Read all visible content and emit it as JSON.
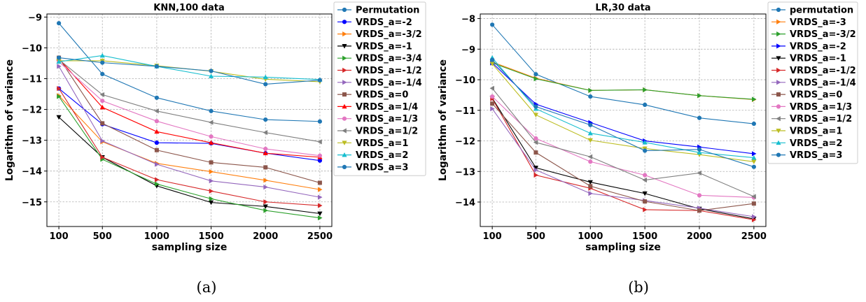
{
  "chart_data": [
    {
      "type": "line",
      "title": "KNN,100 data",
      "xlabel": "sampling size",
      "ylabel": "Logarithm of variance",
      "x": [
        100,
        500,
        1000,
        1500,
        2000,
        2500
      ],
      "xticks": [
        "100",
        "500",
        "1000",
        "1500",
        "2000",
        "2500"
      ],
      "yticks": [
        -15,
        -14,
        -13,
        -12,
        -11,
        -10,
        -9
      ],
      "ylim": [
        -15.8,
        -8.9
      ],
      "grid": true,
      "legend": "right",
      "caption": "(a)",
      "series": [
        {
          "name": "Permutation",
          "color": "#1f77b4",
          "marker": "circle",
          "values": [
            -9.2,
            -10.85,
            -11.62,
            -12.05,
            -12.33,
            -12.39
          ]
        },
        {
          "name": "VRDS_a=-2",
          "color": "#0000ff",
          "marker": "circle",
          "values": [
            -11.32,
            -12.48,
            -13.08,
            -13.1,
            -13.42,
            -13.66
          ]
        },
        {
          "name": "VRDS_a=-3/2",
          "color": "#ff7f0e",
          "marker": "tri_right",
          "values": [
            -11.55,
            -13.05,
            -13.75,
            -14.02,
            -14.3,
            -14.6
          ]
        },
        {
          "name": "VRDS_a=-1",
          "color": "#000000",
          "marker": "tri_down",
          "values": [
            -12.25,
            -13.55,
            -14.48,
            -15.02,
            -15.15,
            -15.38
          ]
        },
        {
          "name": "VRDS_a=-3/4",
          "color": "#2ca02c",
          "marker": "tri_right",
          "values": [
            -11.58,
            -13.62,
            -14.42,
            -14.9,
            -15.28,
            -15.52
          ]
        },
        {
          "name": "VRDS_a=-1/2",
          "color": "#d62728",
          "marker": "tri_right",
          "values": [
            -11.32,
            -13.55,
            -14.28,
            -14.65,
            -15.0,
            -15.12
          ]
        },
        {
          "name": "VRDS_a=-1/4",
          "color": "#9467bd",
          "marker": "tri_right",
          "values": [
            -10.6,
            -13.02,
            -13.78,
            -14.32,
            -14.52,
            -14.85
          ]
        },
        {
          "name": "VRDS_a=0",
          "color": "#8c564b",
          "marker": "square",
          "values": [
            -10.32,
            -12.45,
            -13.32,
            -13.72,
            -13.88,
            -14.38
          ]
        },
        {
          "name": "VRDS_a=1/4",
          "color": "#ff0000",
          "marker": "tri_up",
          "values": [
            -10.35,
            -11.93,
            -12.72,
            -13.08,
            -13.42,
            -13.55
          ]
        },
        {
          "name": "VRDS_a=1/3",
          "color": "#e377c2",
          "marker": "circle",
          "values": [
            -10.45,
            -11.72,
            -12.38,
            -12.88,
            -13.28,
            -13.5
          ]
        },
        {
          "name": "VRDS_a=1/2",
          "color": "#7f7f7f",
          "marker": "tri_left",
          "values": [
            -10.38,
            -11.52,
            -12.05,
            -12.42,
            -12.75,
            -13.05
          ]
        },
        {
          "name": "VRDS_a=1",
          "color": "#bcbd22",
          "marker": "tri_down",
          "values": [
            -10.42,
            -10.42,
            -10.58,
            -10.76,
            -11.02,
            -11.1
          ]
        },
        {
          "name": "VRDS_a=2",
          "color": "#17becf",
          "marker": "tri_up",
          "values": [
            -10.45,
            -10.25,
            -10.6,
            -10.92,
            -10.95,
            -11.03
          ]
        },
        {
          "name": "VRDS_a=3",
          "color": "#1f77b4",
          "marker": "circle",
          "values": [
            -10.32,
            -10.48,
            -10.6,
            -10.75,
            -11.18,
            -11.05
          ]
        }
      ]
    },
    {
      "type": "line",
      "title": "LR,30 data",
      "xlabel": "sampling size",
      "ylabel": "Logarithm of variance",
      "x": [
        100,
        500,
        1000,
        1500,
        2000,
        2500
      ],
      "xticks": [
        "100",
        "500",
        "1000",
        "1500",
        "2000",
        "2500"
      ],
      "yticks": [
        -14,
        -13,
        -12,
        -11,
        -10,
        -9,
        -8
      ],
      "ylim": [
        -14.8,
        -7.85
      ],
      "grid": true,
      "legend": "right",
      "caption": "(b)",
      "series": [
        {
          "name": "permutation",
          "color": "#1f77b4",
          "marker": "circle",
          "values": [
            -8.2,
            -9.82,
            -10.55,
            -10.82,
            -11.25,
            -11.44
          ]
        },
        {
          "name": "VRDS_a=-3",
          "color": "#ff7f0e",
          "marker": "tri_right",
          "values": [
            -9.42,
            -9.95,
            -10.35,
            -10.33,
            -10.52,
            -10.65
          ]
        },
        {
          "name": "VRDS_a=-3/2",
          "color": "#2ca02c",
          "marker": "tri_right",
          "values": [
            -9.45,
            -9.97,
            -10.35,
            -10.33,
            -10.52,
            -10.64
          ]
        },
        {
          "name": "VRDS_a=-2",
          "color": "#0000ff",
          "marker": "tri_right",
          "values": [
            -9.45,
            -10.8,
            -11.4,
            -12.0,
            -12.2,
            -12.42
          ]
        },
        {
          "name": "VRDS_a=-1",
          "color": "#000000",
          "marker": "tri_down",
          "values": [
            -10.6,
            -12.88,
            -13.35,
            -13.72,
            -14.22,
            -14.55
          ]
        },
        {
          "name": "VRDS_a=-1/2",
          "color": "#d62728",
          "marker": "tri_right",
          "values": [
            -10.62,
            -13.12,
            -13.55,
            -14.25,
            -14.28,
            -14.58
          ]
        },
        {
          "name": "VRDS_a=-1/4",
          "color": "#9467bd",
          "marker": "tri_right",
          "values": [
            -10.95,
            -12.95,
            -13.72,
            -13.95,
            -14.2,
            -14.48
          ]
        },
        {
          "name": "VRDS_a=0",
          "color": "#8c564b",
          "marker": "square",
          "values": [
            -10.78,
            -12.38,
            -13.48,
            -13.98,
            -14.28,
            -14.05
          ]
        },
        {
          "name": "VRDS_a=1/3",
          "color": "#e377c2",
          "marker": "circle",
          "values": [
            -10.55,
            -11.92,
            -12.68,
            -13.12,
            -13.78,
            -13.85
          ]
        },
        {
          "name": "VRDS_a=1/2",
          "color": "#7f7f7f",
          "marker": "tri_left",
          "values": [
            -10.28,
            -12.05,
            -12.52,
            -13.28,
            -13.05,
            -13.82
          ]
        },
        {
          "name": "VRDS_a=1",
          "color": "#bcbd22",
          "marker": "tri_down",
          "values": [
            -9.48,
            -11.15,
            -11.98,
            -12.25,
            -12.45,
            -12.68
          ]
        },
        {
          "name": "VRDS_a=2",
          "color": "#17becf",
          "marker": "tri_up",
          "values": [
            -9.28,
            -10.95,
            -11.75,
            -12.05,
            -12.38,
            -12.55
          ]
        },
        {
          "name": "VRDS_a=3",
          "color": "#1f77b4",
          "marker": "circle",
          "values": [
            -9.35,
            -10.88,
            -11.48,
            -12.32,
            -12.28,
            -12.85
          ]
        }
      ]
    }
  ]
}
